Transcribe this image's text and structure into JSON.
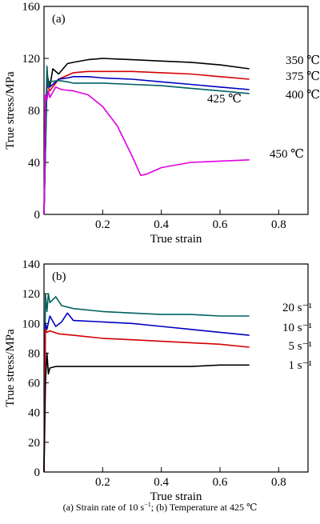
{
  "chart_data": [
    {
      "type": "line",
      "panel_label": "(a)",
      "xlabel": "True strain",
      "ylabel": "True stress/MPa",
      "xlim": [
        0,
        0.9
      ],
      "ylim": [
        0,
        160
      ],
      "xticks": [
        0.2,
        0.4,
        0.6,
        0.8
      ],
      "yticks": [
        40,
        80,
        120,
        160
      ],
      "x_tick_labels": [
        "0.2",
        "0.4",
        "0.6",
        "0.8"
      ],
      "y_tick_labels": [
        "40",
        "80",
        "120",
        "160"
      ],
      "origin_label": "0",
      "grid": false,
      "series": [
        {
          "name": "350 ℃",
          "color": "#000000",
          "x": [
            0,
            0.01,
            0.02,
            0.03,
            0.05,
            0.08,
            0.1,
            0.15,
            0.2,
            0.25,
            0.3,
            0.4,
            0.5,
            0.6,
            0.7
          ],
          "y": [
            0,
            108,
            98,
            112,
            108,
            116,
            117,
            119,
            120,
            119.5,
            119,
            118,
            117,
            115,
            112
          ]
        },
        {
          "name": "375 ℃",
          "color": "#d40000",
          "x": [
            0,
            0.01,
            0.02,
            0.05,
            0.08,
            0.1,
            0.15,
            0.2,
            0.3,
            0.4,
            0.5,
            0.6,
            0.7
          ],
          "y": [
            0,
            100,
            95,
            104,
            107,
            109,
            110,
            110,
            110,
            109,
            108,
            106,
            104
          ]
        },
        {
          "name": "400 ℃",
          "color": "#0000c0",
          "x": [
            0,
            0.01,
            0.02,
            0.05,
            0.08,
            0.1,
            0.15,
            0.2,
            0.3,
            0.4,
            0.5,
            0.6,
            0.7
          ],
          "y": [
            0,
            102,
            98,
            104,
            105,
            106,
            106,
            105,
            104,
            102,
            100,
            98,
            96
          ]
        },
        {
          "name": "425 ℃",
          "color": "#006060",
          "x": [
            0,
            0.01,
            0.015,
            0.02,
            0.05,
            0.08,
            0.1,
            0.2,
            0.3,
            0.4,
            0.5,
            0.6,
            0.7
          ],
          "y": [
            0,
            114,
            98,
            102,
            103,
            102,
            101,
            101,
            100,
            99,
            97,
            95,
            93
          ]
        },
        {
          "name": "450 ℃",
          "color": "#e000e0",
          "x": [
            0,
            0.005,
            0.01,
            0.015,
            0.02,
            0.04,
            0.06,
            0.1,
            0.15,
            0.2,
            0.25,
            0.3,
            0.33,
            0.35,
            0.4,
            0.5,
            0.6,
            0.7
          ],
          "y": [
            0,
            92,
            88,
            95,
            90,
            98,
            96,
            95,
            92,
            83,
            68,
            45,
            30,
            31,
            36,
            40,
            41,
            42
          ]
        }
      ],
      "annotations": [
        "350 ℃",
        "375 ℃",
        "400 ℃",
        "425 ℃",
        "450 ℃"
      ]
    },
    {
      "type": "line",
      "panel_label": "(b)",
      "xlabel": "True strain",
      "ylabel": "True stress/MPa",
      "xlim": [
        0,
        0.9
      ],
      "ylim": [
        0,
        140
      ],
      "xticks": [
        0.2,
        0.4,
        0.6,
        0.8
      ],
      "yticks": [
        20,
        40,
        60,
        80,
        100,
        120,
        140
      ],
      "x_tick_labels": [
        "0.2",
        "0.4",
        "0.6",
        "0.8"
      ],
      "y_tick_labels": [
        "20",
        "40",
        "60",
        "80",
        "100",
        "120",
        "140"
      ],
      "origin_label": "0",
      "grid": false,
      "series": [
        {
          "name": "20 s⁻¹",
          "color": "#006060",
          "x": [
            0,
            0.005,
            0.01,
            0.015,
            0.02,
            0.04,
            0.06,
            0.1,
            0.2,
            0.3,
            0.4,
            0.5,
            0.6,
            0.7
          ],
          "y": [
            0,
            120,
            108,
            120,
            114,
            118,
            112,
            110,
            108,
            107,
            106,
            106,
            105,
            105
          ]
        },
        {
          "name": "10 s⁻¹",
          "color": "#0000c0",
          "x": [
            0,
            0.005,
            0.01,
            0.02,
            0.04,
            0.06,
            0.08,
            0.1,
            0.2,
            0.3,
            0.4,
            0.5,
            0.6,
            0.7
          ],
          "y": [
            0,
            100,
            96,
            105,
            98,
            101,
            107,
            102,
            101,
            100,
            98,
            96,
            94,
            92
          ]
        },
        {
          "name": "5 s⁻¹",
          "color": "#d40000",
          "x": [
            0,
            0.005,
            0.01,
            0.02,
            0.05,
            0.1,
            0.2,
            0.3,
            0.4,
            0.5,
            0.6,
            0.7
          ],
          "y": [
            0,
            96,
            94,
            95,
            93,
            92,
            90,
            89,
            88,
            87,
            86,
            84
          ]
        },
        {
          "name": "1 s⁻¹",
          "color": "#000000",
          "x": [
            0,
            0.005,
            0.01,
            0.015,
            0.02,
            0.04,
            0.1,
            0.2,
            0.3,
            0.4,
            0.5,
            0.6,
            0.7
          ],
          "y": [
            0,
            60,
            80,
            66,
            70,
            71,
            71,
            71,
            71,
            71,
            71,
            72,
            72
          ]
        }
      ],
      "annotations": [
        "20 s⁻¹",
        "10 s⁻¹",
        "5 s⁻¹",
        "1 s⁻¹"
      ]
    }
  ],
  "caption": {
    "a_prefix": "(a)  Strain  rate  of  10  s",
    "a_sup": "−1",
    "a_suffix": ";  ",
    "b_text": "(b)  Temperature at 425 ℃"
  }
}
